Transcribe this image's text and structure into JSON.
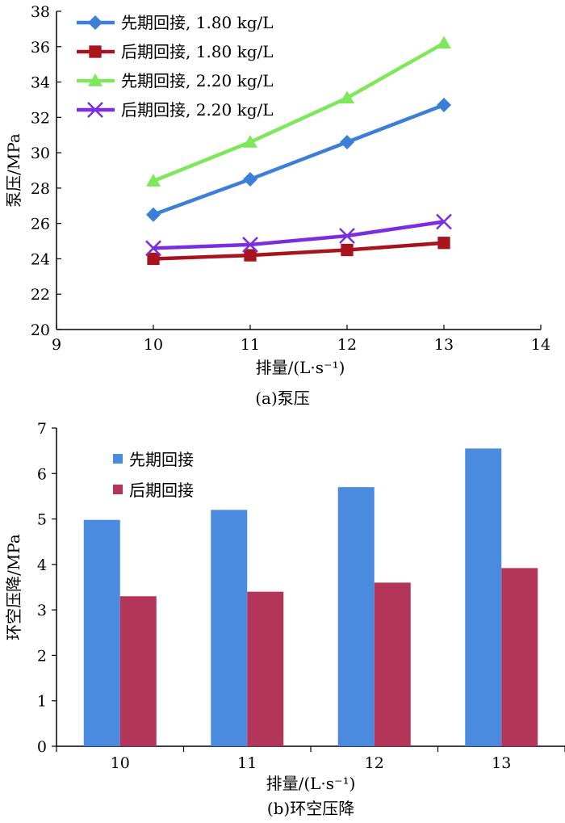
{
  "chart_data": [
    {
      "type": "line",
      "xlabel": "排量/(L·s⁻¹)",
      "ylabel": "泵压/MPa",
      "caption": "(a)泵压",
      "xlim": [
        9,
        14
      ],
      "ylim": [
        20,
        38
      ],
      "xticks": [
        "9",
        "10",
        "11",
        "12",
        "13",
        "14"
      ],
      "yticks": [
        "20",
        "22",
        "24",
        "26",
        "28",
        "30",
        "32",
        "34",
        "36",
        "38"
      ],
      "x": [
        10,
        11,
        12,
        13
      ],
      "legend_position": "top-left",
      "grid": false,
      "series": [
        {
          "name": "先期回接, 1.80 kg/L",
          "values": [
            26.5,
            28.5,
            30.6,
            32.7
          ],
          "color": "#3C7FD9",
          "marker": "diamond"
        },
        {
          "name": "后期回接, 1.80 kg/L",
          "values": [
            24.0,
            24.2,
            24.5,
            24.9
          ],
          "color": "#A8141E",
          "marker": "square"
        },
        {
          "name": "先期回接, 2.20 kg/L",
          "values": [
            28.4,
            30.6,
            33.1,
            36.2
          ],
          "color": "#7EE85B",
          "marker": "triangle"
        },
        {
          "name": "后期回接, 2.20 kg/L",
          "values": [
            24.6,
            24.8,
            25.3,
            26.1
          ],
          "color": "#7A2EE0",
          "marker": "x"
        }
      ]
    },
    {
      "type": "bar",
      "xlabel": "排量/(L·s⁻¹)",
      "ylabel": "环空压降/MPa",
      "caption": "(b)环空压降",
      "categories": [
        "10",
        "11",
        "12",
        "13"
      ],
      "ylim": [
        0,
        7
      ],
      "yticks": [
        "0",
        "1",
        "2",
        "3",
        "4",
        "5",
        "6",
        "7"
      ],
      "legend_position": "top-left",
      "grid": false,
      "series": [
        {
          "name": "先期回接",
          "values": [
            4.98,
            5.2,
            5.7,
            6.55
          ],
          "color": "#4A8BE0"
        },
        {
          "name": "后期回接",
          "values": [
            3.3,
            3.4,
            3.6,
            3.92
          ],
          "color": "#B3365A"
        }
      ]
    }
  ]
}
